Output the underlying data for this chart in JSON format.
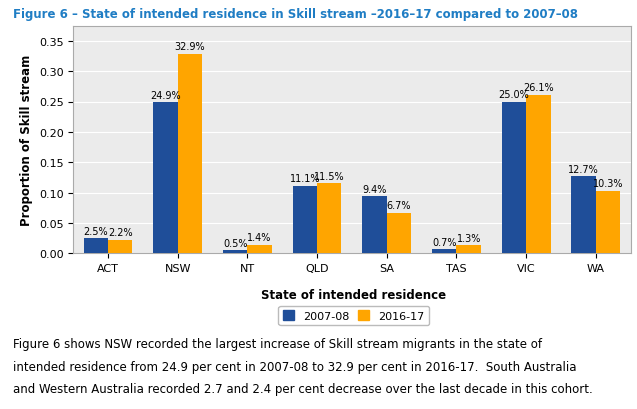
{
  "title": "Figure 6 – State of intended residence in Skill stream –2016–17 compared to 2007–08",
  "categories": [
    "ACT",
    "NSW",
    "NT",
    "QLD",
    "SA",
    "TAS",
    "VIC",
    "WA"
  ],
  "values_2007": [
    0.025,
    0.249,
    0.005,
    0.111,
    0.094,
    0.007,
    0.25,
    0.127
  ],
  "values_2016": [
    0.022,
    0.329,
    0.014,
    0.115,
    0.067,
    0.013,
    0.261,
    0.103
  ],
  "labels_2007": [
    "2.5%",
    "24.9%",
    "0.5%",
    "11.1%",
    "9.4%",
    "0.7%",
    "25.0%",
    "12.7%"
  ],
  "labels_2016": [
    "2.2%",
    "32.9%",
    "1.4%",
    "11.5%",
    "6.7%",
    "1.3%",
    "26.1%",
    "10.3%"
  ],
  "color_2007": "#1F4E99",
  "color_2016": "#FFA500",
  "xlabel": "State of intended residence",
  "ylabel": "Proportion of Skill stream",
  "ylim": [
    0,
    0.375
  ],
  "yticks": [
    0.0,
    0.05,
    0.1,
    0.15,
    0.2,
    0.25,
    0.3,
    0.35
  ],
  "legend_2007": "2007-08",
  "legend_2016": "2016-17",
  "caption_line1": "Figure 6 shows NSW recorded the largest increase of Skill stream migrants in the state of",
  "caption_line2": "intended residence from 24.9 per cent in 2007-08 to 32.9 per cent in 2016-17.  South Australia",
  "caption_line3": "and Western Australia recorded 2.7 and 2.4 per cent decrease over the last decade in this cohort.",
  "title_color": "#1F7DC4",
  "plot_bg_color": "#EBEBEB",
  "title_fontsize": 8.5,
  "label_fontsize": 7.0,
  "axis_label_fontsize": 8.5,
  "tick_fontsize": 8,
  "caption_fontsize": 8.5,
  "legend_fontsize": 8.0
}
